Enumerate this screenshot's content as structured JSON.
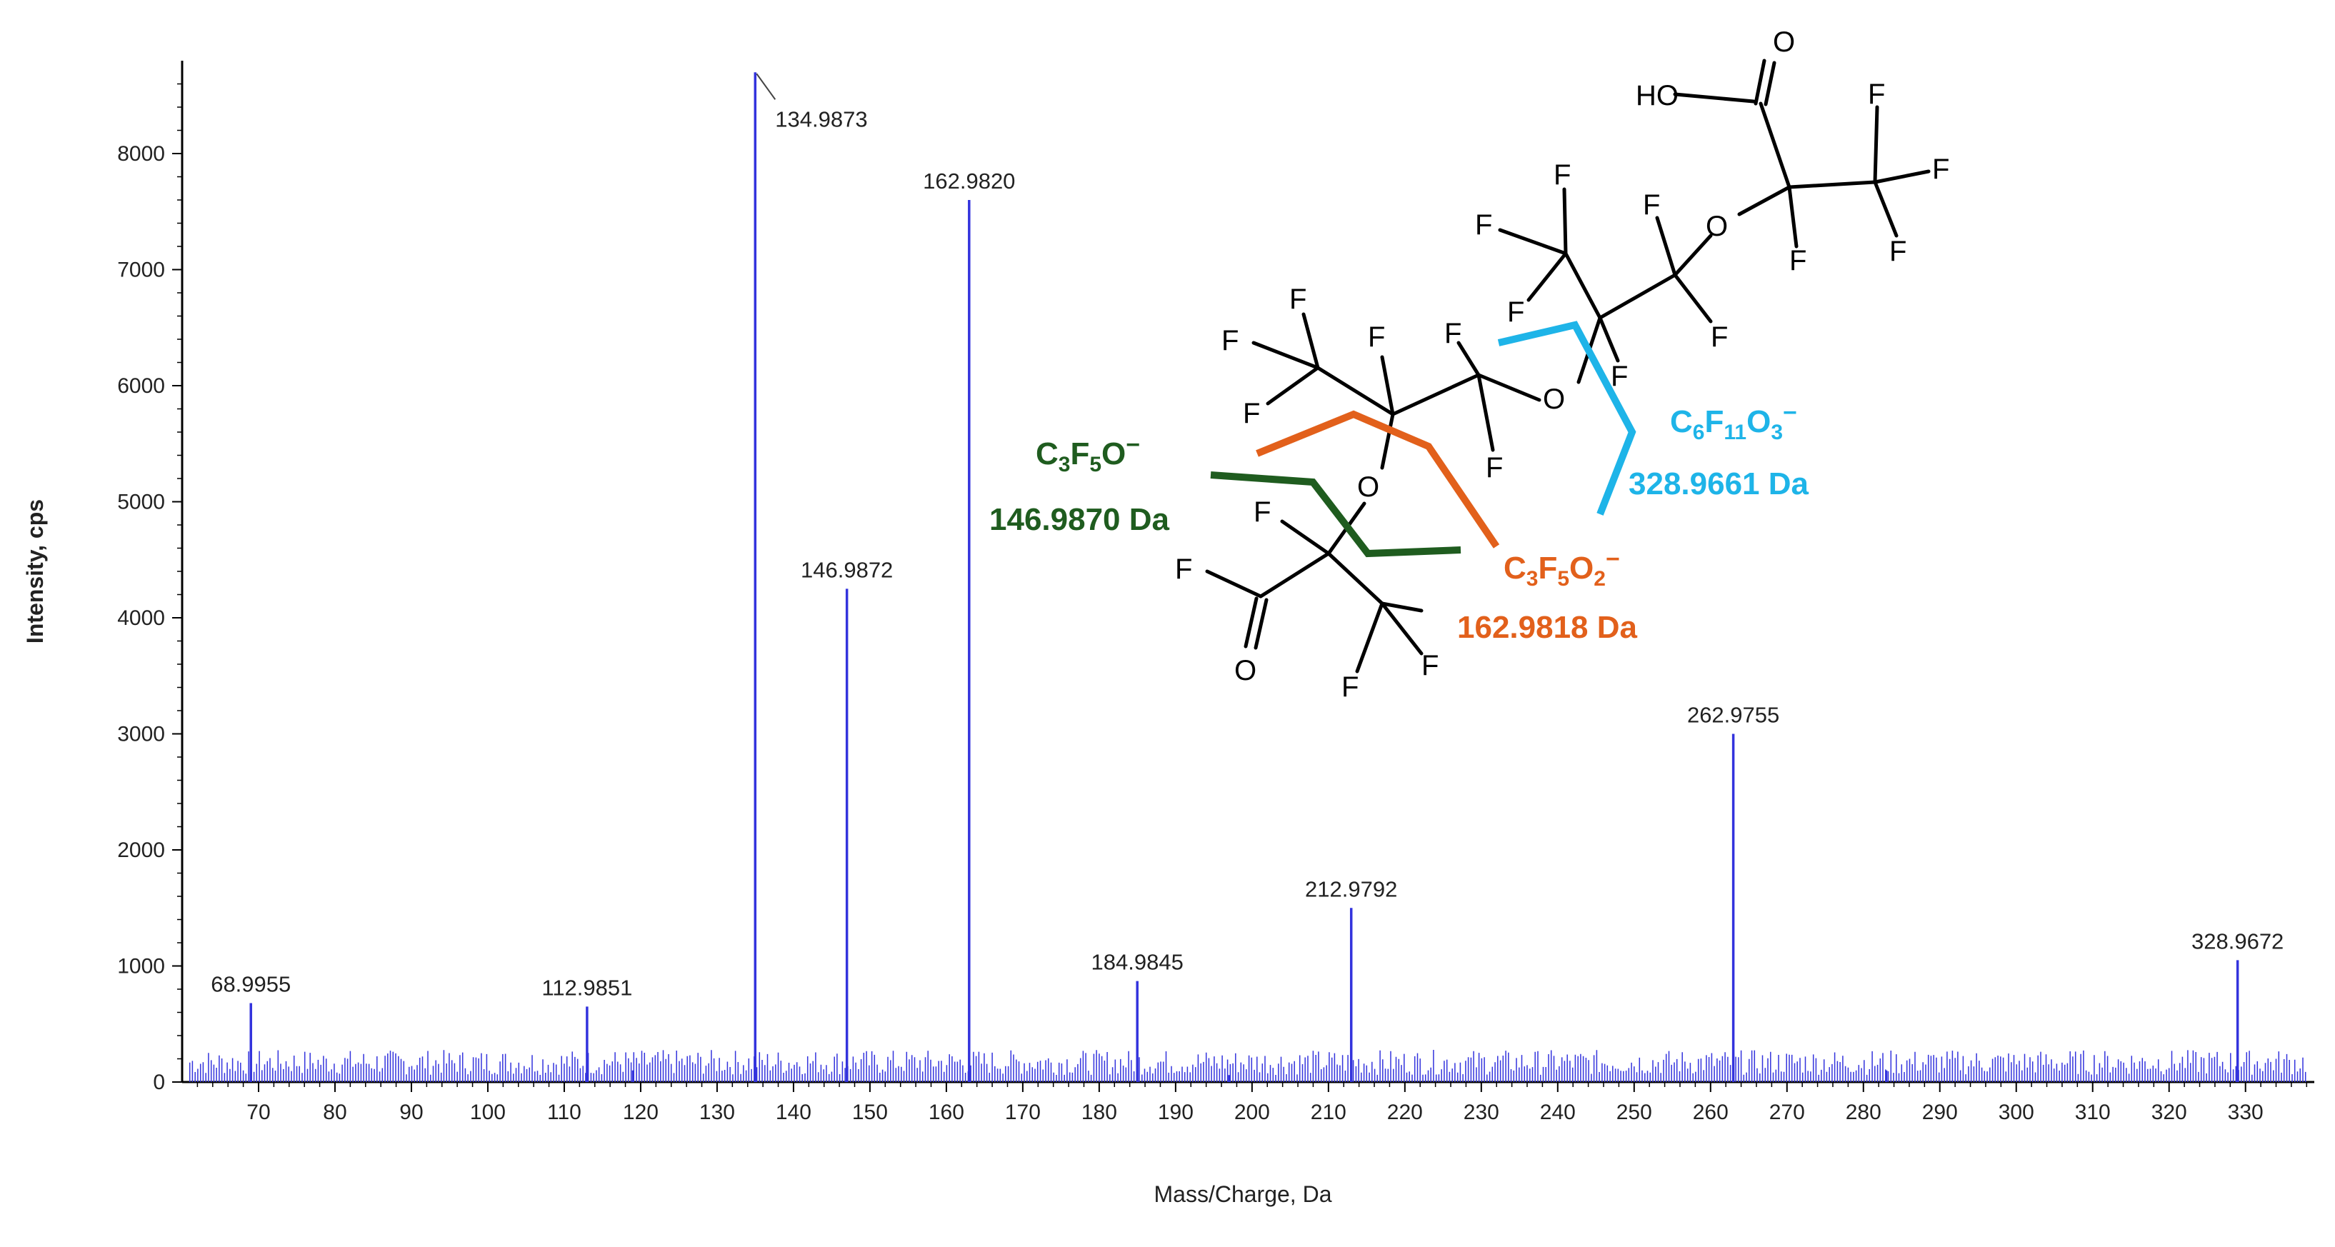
{
  "chart_data": {
    "type": "bar",
    "xlabel": "Mass/Charge, Da",
    "ylabel": "Intensity, cps",
    "xlim": [
      60,
      339
    ],
    "ylim": [
      0,
      8800
    ],
    "x_ticks": [
      70,
      80,
      90,
      100,
      110,
      120,
      130,
      140,
      150,
      160,
      170,
      180,
      190,
      200,
      210,
      220,
      230,
      240,
      250,
      260,
      270,
      280,
      290,
      300,
      310,
      320,
      330
    ],
    "y_ticks": [
      0,
      1000,
      2000,
      3000,
      4000,
      5000,
      6000,
      7000,
      8000
    ],
    "grid": false,
    "series_color": "#3333dd",
    "labeled_peaks": [
      {
        "mz": 68.9955,
        "intensity": 680,
        "label": "68.9955"
      },
      {
        "mz": 112.9851,
        "intensity": 650,
        "label": "112.9851"
      },
      {
        "mz": 134.9873,
        "intensity": 8700,
        "label": "134.9873"
      },
      {
        "mz": 146.9872,
        "intensity": 4250,
        "label": "146.9872"
      },
      {
        "mz": 162.982,
        "intensity": 7600,
        "label": "162.9820"
      },
      {
        "mz": 184.9845,
        "intensity": 870,
        "label": "184.9845"
      },
      {
        "mz": 212.9792,
        "intensity": 1500,
        "label": "212.9792"
      },
      {
        "mz": 262.9755,
        "intensity": 3000,
        "label": "262.9755"
      },
      {
        "mz": 328.9672,
        "intensity": 1050,
        "label": "328.9672"
      }
    ],
    "minor_peaks": [
      {
        "mz": 119,
        "intensity": 100
      },
      {
        "mz": 197,
        "intensity": 60
      },
      {
        "mz": 283,
        "intensity": 100
      }
    ]
  },
  "structure": {
    "atoms": {
      "fluorine": "F",
      "oxygen": "O",
      "hydroxyl": "HO"
    }
  },
  "fragments": [
    {
      "formula": {
        "base1": "C",
        "sub1": "3",
        "base2": "F",
        "sub2": "5",
        "base3": "O",
        "sub3": "",
        "charge": "−"
      },
      "mass": "146.9870 Da",
      "color": "#1f5c1f"
    },
    {
      "formula": {
        "base1": "C",
        "sub1": "3",
        "base2": "F",
        "sub2": "5",
        "base3": "O",
        "sub3": "2",
        "charge": "−"
      },
      "mass": "162.9818 Da",
      "color": "#e2601b"
    },
    {
      "formula": {
        "base1": "C",
        "sub1": "6",
        "base2": "F",
        "sub2": "11",
        "base3": "O",
        "sub3": "3",
        "charge": "−"
      },
      "mass": "328.9661 Da",
      "color": "#1eb4e8"
    }
  ]
}
